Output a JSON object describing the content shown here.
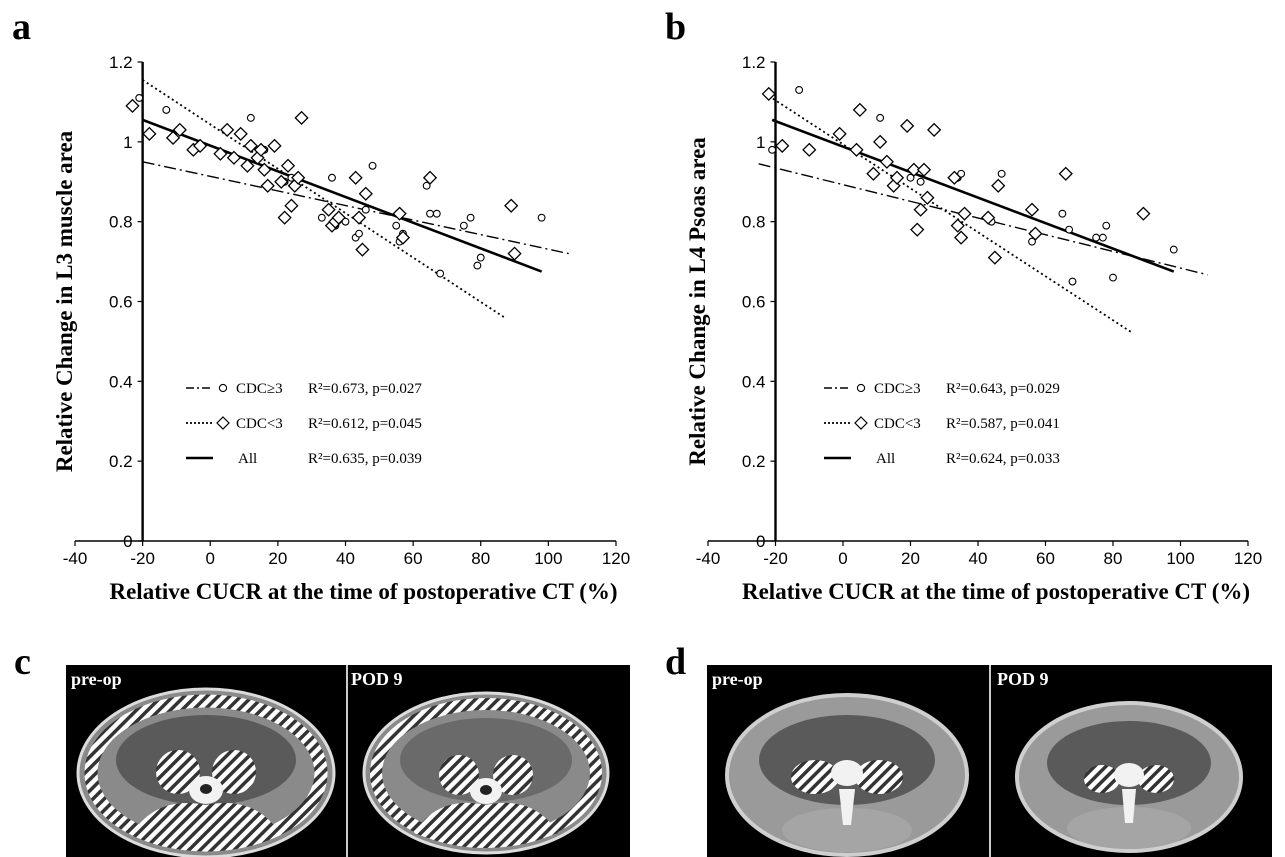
{
  "panel_letters": {
    "a": "a",
    "b": "b",
    "c": "c",
    "d": "d"
  },
  "chart_data": [
    {
      "type": "scatter",
      "panel": "a",
      "xlabel": "Relative CUCR at the time of postoperative CT (%)",
      "ylabel": "Relative Change in L3 muscle area",
      "xlim": [
        -40,
        120
      ],
      "ylim": [
        0,
        1.2
      ],
      "xticks": [
        "-40",
        "-20",
        "0",
        "20",
        "40",
        "60",
        "80",
        "100",
        "120"
      ],
      "yticks": [
        "0",
        "0.2",
        "0.4",
        "0.6",
        "0.8",
        "1",
        "1.2"
      ],
      "legend_position": "lower-left",
      "series": [
        {
          "name": "CDC≥3",
          "marker": "circle",
          "stats": "R²=0.673, p=0.027",
          "line_style": "dashdot",
          "fit": {
            "x": [
              -20,
              106
            ],
            "y": [
              0.95,
              0.72
            ]
          },
          "x": [
            -21,
            -13,
            12,
            16,
            22,
            24,
            33,
            36,
            37,
            40,
            43,
            44,
            46,
            48,
            55,
            56,
            57,
            64,
            65,
            67,
            68,
            75,
            77,
            79,
            80,
            98
          ],
          "y": [
            1.11,
            1.08,
            1.06,
            0.98,
            0.9,
            0.91,
            0.81,
            0.91,
            0.79,
            0.8,
            0.76,
            0.77,
            0.83,
            0.94,
            0.79,
            0.75,
            0.77,
            0.89,
            0.82,
            0.82,
            0.67,
            0.79,
            0.81,
            0.69,
            0.71,
            0.81
          ]
        },
        {
          "name": "CDC<3",
          "marker": "diamond",
          "stats": "R²=0.612, p=0.045",
          "line_style": "dotted",
          "fit": {
            "x": [
              -20,
              87
            ],
            "y": [
              1.155,
              0.56
            ]
          },
          "x": [
            -23,
            -18,
            -11,
            -9,
            -5,
            -3,
            3,
            5,
            7,
            9,
            11,
            12,
            14,
            15,
            16,
            17,
            19,
            21,
            22,
            23,
            24,
            25,
            26,
            27,
            35,
            36,
            37,
            38,
            43,
            44,
            45,
            46,
            56,
            57,
            65,
            89,
            90
          ],
          "y": [
            1.09,
            1.02,
            1.01,
            1.03,
            0.98,
            0.99,
            0.97,
            1.03,
            0.96,
            1.02,
            0.94,
            0.99,
            0.96,
            0.98,
            0.93,
            0.89,
            0.99,
            0.9,
            0.81,
            0.94,
            0.84,
            0.89,
            0.91,
            1.06,
            0.83,
            0.79,
            0.8,
            0.81,
            0.91,
            0.81,
            0.73,
            0.87,
            0.82,
            0.76,
            0.91,
            0.84,
            0.72
          ]
        },
        {
          "name": "All",
          "marker": "none",
          "stats": "R²=0.635, p=0.039",
          "line_style": "solid",
          "fit": {
            "x": [
              -20,
              98
            ],
            "y": [
              1.055,
              0.675
            ]
          }
        }
      ]
    },
    {
      "type": "scatter",
      "panel": "b",
      "xlabel": "Relative CUCR at the time of postoperative CT (%)",
      "ylabel": "Relative Change in L4 Psoas area",
      "xlim": [
        -40,
        120
      ],
      "ylim": [
        0,
        1.2
      ],
      "xticks": [
        "-40",
        "-20",
        "0",
        "20",
        "40",
        "60",
        "80",
        "100",
        "120"
      ],
      "yticks": [
        "0",
        "0.2",
        "0.4",
        "0.6",
        "0.8",
        "1",
        "1.2"
      ],
      "legend_position": "lower-left",
      "series": [
        {
          "name": "CDC≥3",
          "marker": "circle",
          "stats": "R²=0.643, p=0.029",
          "line_style": "dashdot",
          "fit": {
            "x": [
              -25,
              108
            ],
            "y": [
              0.945,
              0.667
            ]
          },
          "x": [
            -21,
            -13,
            11,
            20,
            23,
            34,
            35,
            44,
            47,
            56,
            65,
            67,
            68,
            75,
            77,
            78,
            80,
            98
          ],
          "y": [
            0.98,
            1.13,
            1.06,
            0.91,
            0.9,
            0.91,
            0.92,
            0.8,
            0.92,
            0.75,
            0.82,
            0.78,
            0.65,
            0.76,
            0.76,
            0.79,
            0.66,
            0.73
          ]
        },
        {
          "name": "CDC<3",
          "marker": "diamond",
          "stats": "R²=0.587, p=0.041",
          "line_style": "dotted",
          "fit": {
            "x": [
              -22,
              86
            ],
            "y": [
              1.115,
              0.52
            ]
          },
          "x": [
            -22,
            -18,
            -10,
            -1,
            4,
            5,
            9,
            11,
            13,
            15,
            16,
            19,
            21,
            22,
            23,
            24,
            25,
            27,
            33,
            34,
            35,
            36,
            43,
            45,
            46,
            56,
            57,
            66,
            89
          ],
          "y": [
            1.12,
            0.99,
            0.98,
            1.02,
            0.98,
            1.08,
            0.92,
            1.0,
            0.95,
            0.89,
            0.91,
            1.04,
            0.93,
            0.78,
            0.83,
            0.93,
            0.86,
            1.03,
            0.91,
            0.79,
            0.76,
            0.82,
            0.81,
            0.71,
            0.89,
            0.83,
            0.77,
            0.92,
            0.82
          ]
        },
        {
          "name": "All",
          "marker": "none",
          "stats": "R²=0.624, p=0.033",
          "line_style": "solid",
          "fit": {
            "x": [
              -21,
              98
            ],
            "y": [
              1.055,
              0.675
            ]
          }
        }
      ]
    }
  ],
  "ct_images": {
    "c": {
      "left_label": "pre-op",
      "right_label": "POD 9"
    },
    "d": {
      "left_label": "pre-op",
      "right_label": "POD 9"
    }
  },
  "colors": {
    "ink": "#000000",
    "ct_background": "#000000",
    "tissue": "#9a9a9a",
    "bone": "#f2f2f2"
  }
}
